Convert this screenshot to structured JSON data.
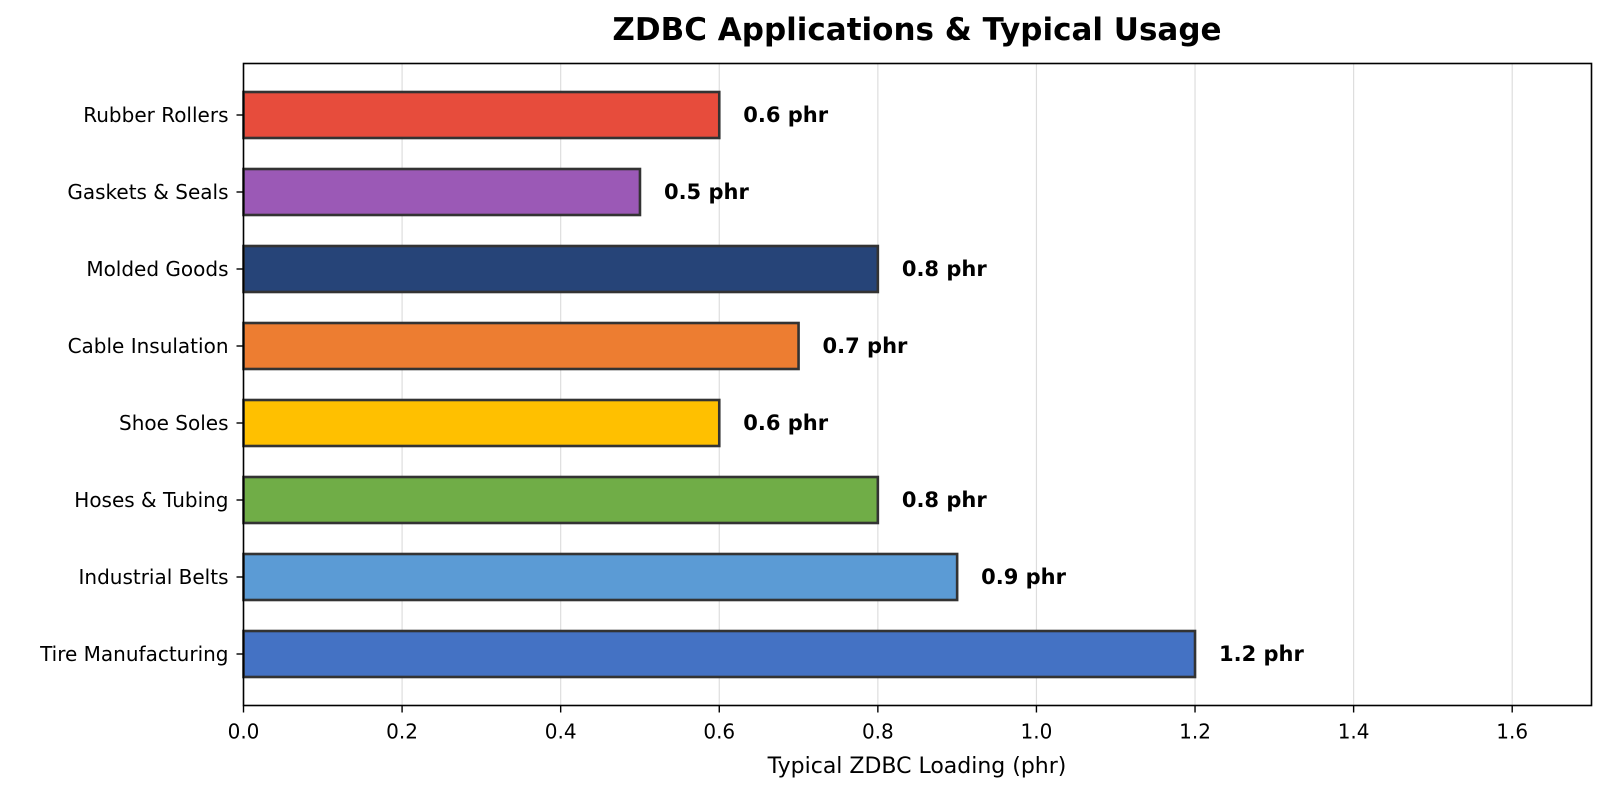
{
  "chart_data": {
    "type": "bar",
    "orientation": "horizontal",
    "title": "ZDBC Applications & Typical Usage",
    "xlabel": "Typical ZDBC Loading (phr)",
    "ylabel": "",
    "xlim": [
      0,
      1.7
    ],
    "x_ticks": [
      "0.0",
      "0.2",
      "0.4",
      "0.6",
      "0.8",
      "1.0",
      "1.2",
      "1.4",
      "1.6"
    ],
    "grid": "vertical",
    "legend": "none",
    "categories": [
      "Tire Manufacturing",
      "Industrial Belts",
      "Hoses & Tubing",
      "Shoe Soles",
      "Cable Insulation",
      "Molded Goods",
      "Gaskets & Seals",
      "Rubber Rollers"
    ],
    "values": [
      1.2,
      0.9,
      0.8,
      0.6,
      0.7,
      0.8,
      0.5,
      0.6
    ],
    "data_labels": [
      "1.2 phr",
      "0.9 phr",
      "0.8 phr",
      "0.6 phr",
      "0.7 phr",
      "0.8 phr",
      "0.5 phr",
      "0.6 phr"
    ],
    "colors": [
      "#4472c4",
      "#5b9bd5",
      "#70ad47",
      "#ffc000",
      "#ed7d31",
      "#264478",
      "#9b59b6",
      "#e74c3c"
    ],
    "bar_edge_color": "#333333"
  }
}
